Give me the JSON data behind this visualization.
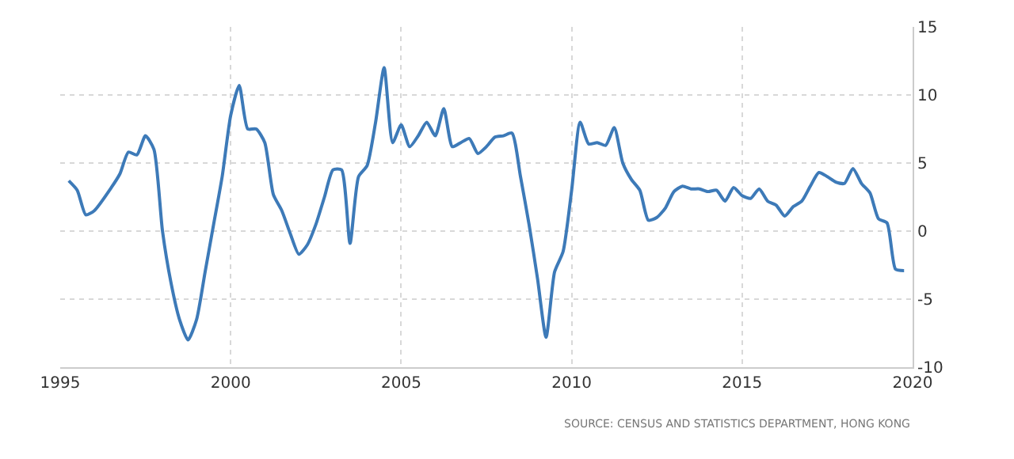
{
  "chart_data": {
    "type": "line",
    "x": [
      1995.25,
      1995.5,
      1995.75,
      1996.0,
      1996.5,
      1996.75,
      1997.0,
      1997.25,
      1997.5,
      1997.75,
      1998.0,
      1998.25,
      1998.5,
      1998.75,
      1999.0,
      1999.25,
      1999.5,
      1999.75,
      2000.0,
      2000.25,
      2000.5,
      2000.75,
      2001.0,
      2001.25,
      2001.5,
      2001.75,
      2002.0,
      2002.25,
      2002.5,
      2002.75,
      2003.0,
      2003.25,
      2003.5,
      2003.75,
      2004.0,
      2004.25,
      2004.5,
      2004.75,
      2005.0,
      2005.25,
      2005.5,
      2005.75,
      2006.0,
      2006.25,
      2006.5,
      2006.75,
      2007.0,
      2007.25,
      2007.5,
      2007.75,
      2008.0,
      2008.25,
      2008.5,
      2008.75,
      2009.0,
      2009.25,
      2009.5,
      2009.75,
      2010.0,
      2010.25,
      2010.5,
      2010.75,
      2011.0,
      2011.25,
      2011.5,
      2011.75,
      2012.0,
      2012.25,
      2012.5,
      2012.75,
      2013.0,
      2013.25,
      2013.5,
      2013.75,
      2014.0,
      2014.25,
      2014.5,
      2014.75,
      2015.0,
      2015.25,
      2015.5,
      2015.75,
      2016.0,
      2016.25,
      2016.5,
      2016.75,
      2017.0,
      2017.25,
      2017.5,
      2017.75,
      2018.0,
      2018.25,
      2018.5,
      2018.75,
      2019.0,
      2019.25,
      2019.5,
      2019.75
    ],
    "series": [
      {
        "color": "#3d7ab8",
        "values": [
          3.7,
          3.0,
          1.2,
          1.5,
          3.2,
          4.2,
          5.8,
          5.6,
          7.0,
          6.0,
          0,
          -3.8,
          -6.5,
          -8.0,
          -6.5,
          -3.0,
          0.5,
          4.0,
          8.5,
          10.7,
          7.5,
          7.5,
          6.5,
          2.7,
          1.5,
          -0.2,
          -1.7,
          -1.0,
          0.5,
          2.5,
          4.5,
          4.5,
          -0.9,
          4.0,
          4.8,
          8.0,
          12.0,
          6.5,
          7.8,
          6.2,
          7.0,
          8.0,
          7.0,
          9.0,
          6.2,
          6.5,
          6.8,
          5.7,
          6.2,
          6.9,
          7.0,
          7.2,
          4.0,
          0.5,
          -3.5,
          -7.8,
          -3.0,
          -1.5,
          3.0,
          8.0,
          6.4,
          6.5,
          6.3,
          7.6,
          5.0,
          3.8,
          3.0,
          0.8,
          1.0,
          1.7,
          2.9,
          3.3,
          3.1,
          3.1,
          2.9,
          3.0,
          2.2,
          3.2,
          2.6,
          2.4,
          3.1,
          2.2,
          1.9,
          1.1,
          1.8,
          2.2,
          3.3,
          4.3,
          4.0,
          3.6,
          3.5,
          4.6,
          3.5,
          2.8,
          0.9,
          0.6,
          -2.8,
          -2.9
        ]
      }
    ],
    "xlim": [
      1995,
      2020
    ],
    "xticks": [
      1995,
      2000,
      2005,
      2010,
      2015,
      2020
    ],
    "ylim": [
      -10,
      15
    ],
    "yticks": [
      -10,
      -5,
      0,
      5,
      10,
      15
    ],
    "grid": true,
    "legend": false,
    "marker": "none",
    "line_style": "solid",
    "annotations": [
      "SOURCE: CENSUS AND STATISTICS DEPARTMENT, HONG KONG"
    ]
  }
}
